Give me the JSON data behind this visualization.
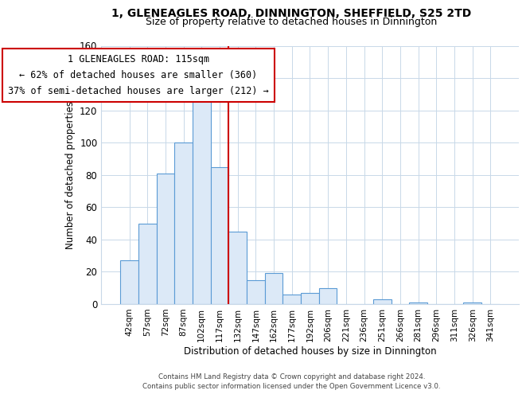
{
  "title_line1": "1, GLENEAGLES ROAD, DINNINGTON, SHEFFIELD, S25 2TD",
  "title_line2": "Size of property relative to detached houses in Dinnington",
  "xlabel": "Distribution of detached houses by size in Dinnington",
  "ylabel": "Number of detached properties",
  "bar_labels": [
    "42sqm",
    "57sqm",
    "72sqm",
    "87sqm",
    "102sqm",
    "117sqm",
    "132sqm",
    "147sqm",
    "162sqm",
    "177sqm",
    "192sqm",
    "206sqm",
    "221sqm",
    "236sqm",
    "251sqm",
    "266sqm",
    "281sqm",
    "296sqm",
    "311sqm",
    "326sqm",
    "341sqm"
  ],
  "bar_values": [
    27,
    50,
    81,
    100,
    130,
    85,
    45,
    15,
    19,
    6,
    7,
    10,
    0,
    0,
    3,
    0,
    1,
    0,
    0,
    1,
    0
  ],
  "bar_color": "#dce9f7",
  "bar_edge_color": "#5b9bd5",
  "vline_color": "#cc0000",
  "annotation_title": "1 GLENEAGLES ROAD: 115sqm",
  "annotation_line1": "← 62% of detached houses are smaller (360)",
  "annotation_line2": "37% of semi-detached houses are larger (212) →",
  "annotation_box_color": "#ffffff",
  "annotation_box_edge": "#cc0000",
  "ylim": [
    0,
    160
  ],
  "yticks": [
    0,
    20,
    40,
    60,
    80,
    100,
    120,
    140,
    160
  ],
  "footer_line1": "Contains HM Land Registry data © Crown copyright and database right 2024.",
  "footer_line2": "Contains public sector information licensed under the Open Government Licence v3.0.",
  "bg_color": "#ffffff",
  "grid_color": "#c8d8e8"
}
